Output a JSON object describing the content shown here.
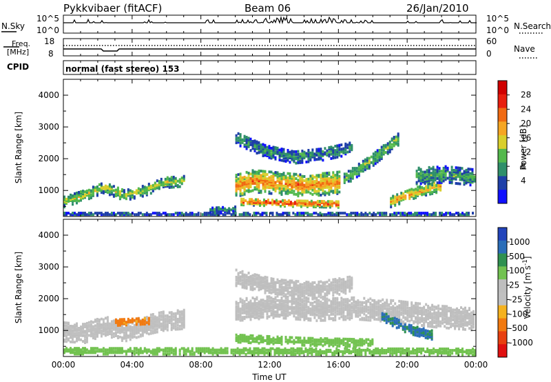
{
  "header": {
    "site": "Pykkvibaer (fitACF)",
    "beam": "Beam 06",
    "date": "26/Jan/2010"
  },
  "nsky_panel": {
    "left_label": "N.Sky",
    "right_label": "N.Search",
    "left_ticks": [
      "10^5",
      "10^0"
    ],
    "right_ticks": [
      "10^5",
      "10^0"
    ]
  },
  "freq_panel": {
    "left_label_1": "Freq.",
    "left_label_2": "[MHz]",
    "right_label": "Nave",
    "left_ticks": [
      "18",
      "8"
    ],
    "right_ticks": [
      "60",
      "0"
    ]
  },
  "cpid_panel": {
    "label": "CPID",
    "text": "normal (fast stereo) 153"
  },
  "colors": {
    "power_scale": [
      "#1010ff",
      "#1e3fa8",
      "#2f8f6a",
      "#53b84c",
      "#d9cf2c",
      "#f6a623",
      "#f06a12",
      "#e81e0e",
      "#d00000"
    ],
    "velocity_scale": [
      "#2244bb",
      "#2a6db8",
      "#2f9150",
      "#72c250",
      "#bebebe",
      "#c0c0c0",
      "#f5b21f",
      "#f27a10",
      "#e84010",
      "#e01010"
    ]
  },
  "chart_data": [
    {
      "type": "heatmap",
      "name": "power",
      "ylabel": "Slant Range [km]",
      "ylim": [
        180,
        4500
      ],
      "yticks": [
        "4000",
        "3000",
        "2000",
        "1000"
      ],
      "xlim": [
        0,
        24
      ],
      "colorbar": {
        "label": "Power [dB]",
        "ticks": [
          "28",
          "24",
          "20",
          "16",
          "12",
          "8",
          "4"
        ],
        "range": [
          0,
          30
        ]
      },
      "bands": [
        {
          "t_start": 0.0,
          "t_end": 7.0,
          "range_center": [
            700,
            900,
            1150,
            900,
            1050,
            1300,
            1350
          ],
          "range_width": 350,
          "value": 14
        },
        {
          "t_start": 8.5,
          "t_end": 10.0,
          "range_center": [
            430,
            450,
            470
          ],
          "range_width": 150,
          "value": 8
        },
        {
          "t_start": 10.0,
          "t_end": 16.0,
          "range_center": [
            1200,
            1350,
            1300,
            1250,
            1200,
            1250,
            1300
          ],
          "range_width": 700,
          "value": 22
        },
        {
          "t_start": 10.3,
          "t_end": 16.0,
          "range_center": [
            700,
            650,
            620
          ],
          "range_width": 220,
          "value": 26
        },
        {
          "t_start": 10.0,
          "t_end": 16.8,
          "range_center": [
            2700,
            2300,
            2100,
            2200,
            2400
          ],
          "range_width": 400,
          "value": 8
        },
        {
          "t_start": 16.3,
          "t_end": 19.5,
          "range_center": [
            1400,
            2000,
            2700
          ],
          "range_width": 400,
          "value": 12
        },
        {
          "t_start": 19.0,
          "t_end": 22.0,
          "range_center": [
            700,
            1000,
            1200
          ],
          "range_width": 350,
          "value": 20
        },
        {
          "t_start": 20.5,
          "t_end": 23.9,
          "range_center": [
            1500,
            1550,
            1450
          ],
          "range_width": 500,
          "value": 10
        },
        {
          "t_start": 0.0,
          "t_end": 23.9,
          "range_center": [
            300,
            300
          ],
          "range_width": 120,
          "value": 6
        }
      ]
    },
    {
      "type": "heatmap",
      "name": "velocity",
      "ylabel": "Slant Range [km]",
      "xlabel": "Time UT",
      "ylim": [
        180,
        4500
      ],
      "yticks": [
        "4000",
        "3000",
        "2000",
        "1000"
      ],
      "xlim": [
        0,
        24
      ],
      "xticks": [
        "00:00",
        "04:00",
        "08:00",
        "12:00",
        "16:00",
        "20:00",
        "00:00"
      ],
      "colorbar": {
        "label": "Velocity [m s",
        "label_sup": "-1",
        "label_end": "]",
        "ticks": [
          "1000",
          "500",
          "100",
          "25",
          "-25",
          "-100",
          "-500",
          "-1000"
        ]
      },
      "bands": [
        {
          "t_start": 0.0,
          "t_end": 7.0,
          "range_center": [
            1000,
            950,
            1200,
            1000,
            1200,
            1350,
            1400
          ],
          "range_width": 600,
          "value": 0
        },
        {
          "t_start": 10.0,
          "t_end": 23.9,
          "range_center": [
            1700,
            1800,
            1700,
            1750,
            1650,
            1500,
            1400
          ],
          "range_width": 700,
          "value": 0
        },
        {
          "t_start": 10.0,
          "t_end": 16.8,
          "range_center": [
            2700,
            2400,
            2300,
            2500
          ],
          "range_width": 500,
          "value": 0
        },
        {
          "t_start": 10.0,
          "t_end": 18.0,
          "range_center": [
            800,
            700,
            650
          ],
          "range_width": 250,
          "value": 60
        },
        {
          "t_start": 18.5,
          "t_end": 21.5,
          "range_center": [
            1500,
            1100,
            900
          ],
          "range_width": 300,
          "value": 600
        },
        {
          "t_start": 3.0,
          "t_end": 5.0,
          "range_center": [
            1300,
            1350
          ],
          "range_width": 200,
          "value": -150
        },
        {
          "t_start": 0.0,
          "t_end": 23.9,
          "range_center": [
            400,
            380
          ],
          "range_width": 200,
          "value": 60
        }
      ]
    }
  ]
}
